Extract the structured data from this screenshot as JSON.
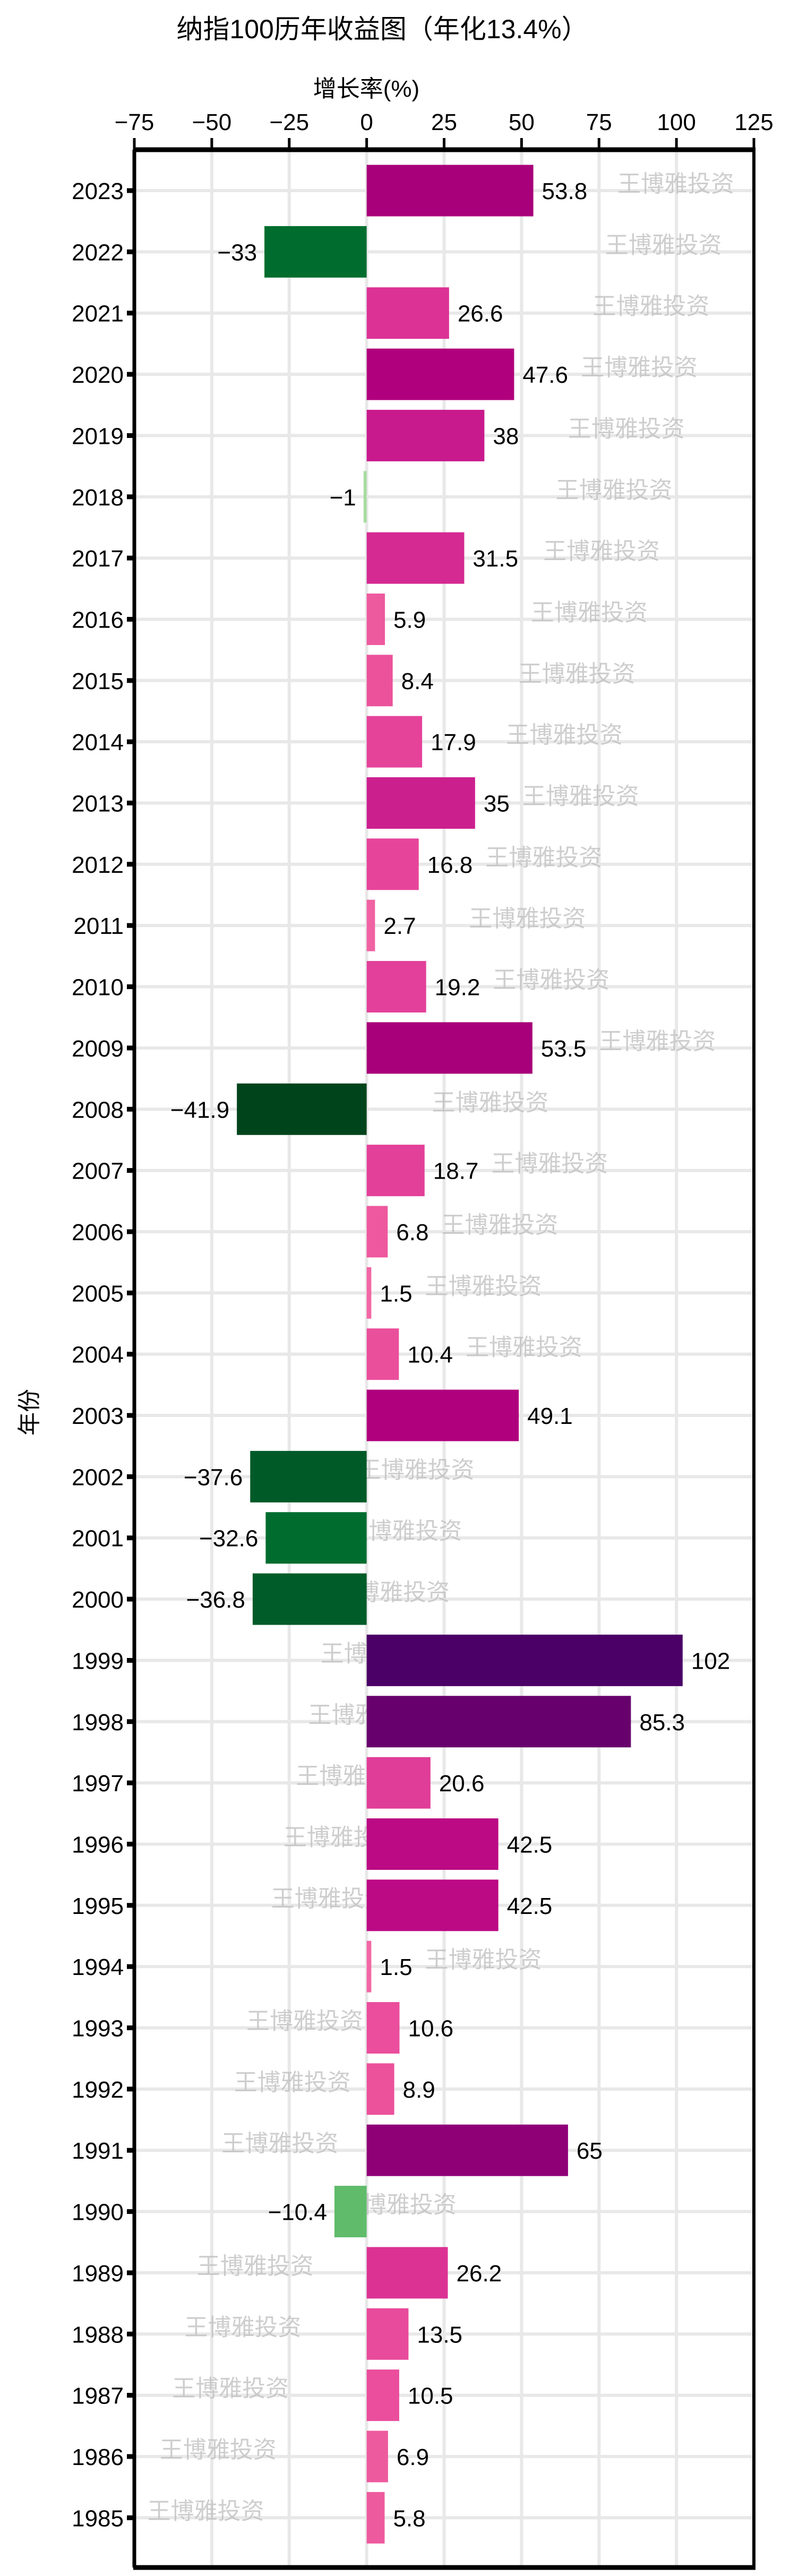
{
  "chart_data": {
    "type": "bar",
    "orientation": "horizontal",
    "title": "纳指100历年收益图（年化13.4%）",
    "xlabel": "增长率(%)",
    "ylabel": "年份",
    "xlim": [
      -75,
      125
    ],
    "xticks": [
      -75,
      -50,
      -25,
      0,
      25,
      50,
      75,
      100,
      125
    ],
    "xtick_labels": [
      "−75",
      "−50",
      "−25",
      "0",
      "25",
      "50",
      "75",
      "100",
      "125"
    ],
    "x_axis_position": "top",
    "grid": true,
    "watermark": "王博雅投资",
    "categories": [
      "2023",
      "2022",
      "2021",
      "2020",
      "2019",
      "2018",
      "2017",
      "2016",
      "2015",
      "2014",
      "2013",
      "2012",
      "2011",
      "2010",
      "2009",
      "2008",
      "2007",
      "2006",
      "2005",
      "2004",
      "2003",
      "2002",
      "2001",
      "2000",
      "1999",
      "1998",
      "1997",
      "1996",
      "1995",
      "1994",
      "1993",
      "1992",
      "1991",
      "1990",
      "1989",
      "1988",
      "1987",
      "1986",
      "1985"
    ],
    "values": [
      53.8,
      -33,
      26.6,
      47.6,
      38,
      -1,
      31.5,
      5.9,
      8.4,
      17.9,
      35,
      16.8,
      2.7,
      19.2,
      53.5,
      -41.9,
      18.7,
      6.8,
      1.5,
      10.4,
      49.1,
      -37.6,
      -32.6,
      -36.8,
      102,
      85.3,
      20.6,
      42.5,
      42.5,
      1.5,
      10.6,
      8.9,
      65,
      -10.4,
      26.2,
      13.5,
      10.5,
      6.9,
      5.8
    ],
    "value_labels": [
      "53.8",
      "−33",
      "26.6",
      "47.6",
      "38",
      "−1",
      "31.5",
      "5.9",
      "8.4",
      "17.9",
      "35",
      "16.8",
      "2.7",
      "19.2",
      "53.5",
      "−41.9",
      "18.7",
      "6.8",
      "1.5",
      "10.4",
      "49.1",
      "−37.6",
      "−32.6",
      "−36.8",
      "102",
      "85.3",
      "20.6",
      "42.5",
      "42.5",
      "1.5",
      "10.6",
      "8.9",
      "65",
      "−10.4",
      "26.2",
      "13.5",
      "10.5",
      "6.9",
      "5.8"
    ],
    "colors": [
      "#a8007a",
      "#006d2e",
      "#dc3296",
      "#b0007d",
      "#c81a8c",
      "#a8dba0",
      "#d42a92",
      "#ee5a9e",
      "#ec529c",
      "#e5439a",
      "#cc1f8e",
      "#e6449a",
      "#f062a2",
      "#e2409a",
      "#a8007a",
      "#00441b",
      "#e3409a",
      "#ee589e",
      "#f266a4",
      "#ea4f9c",
      "#b0007d",
      "#005a28",
      "#006d2f",
      "#005c29",
      "#4a0066",
      "#67006c",
      "#e03d98",
      "#bb0a84",
      "#bb0a84",
      "#f266a4",
      "#ea4e9c",
      "#ec519c",
      "#8f0077",
      "#60bb6a",
      "#dc3294",
      "#e84a9c",
      "#ea4e9c",
      "#ee5a9e",
      "#ee5a9e"
    ],
    "grid_color": "#e8e8e8",
    "watermark_color": "#bdbdbd"
  }
}
